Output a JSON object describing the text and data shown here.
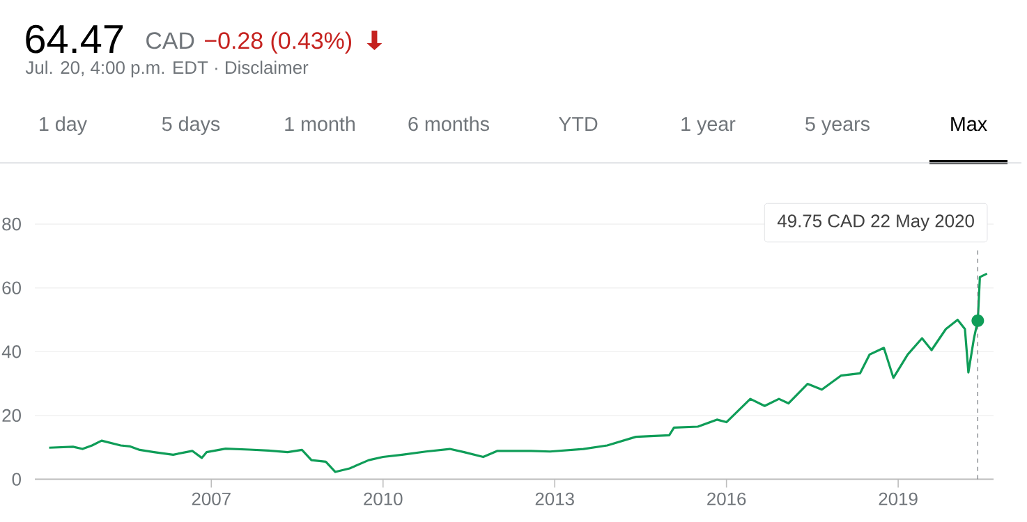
{
  "chart_data": {
    "type": "line",
    "title": "64.47",
    "subtitle": "Jul. 20, 4:00 p.m. EDT · Disclaimer",
    "annotations": [
      "CAD",
      "−0.28 (0.43%)",
      "1 day",
      "5 days",
      "1 month",
      "6 months",
      "YTD",
      "1 year",
      "5 years",
      "Max"
    ],
    "ref_lines": [
      {
        "axis": "x",
        "value": "2020-05-22",
        "label": "49.75 CAD  22 May 2020",
        "color": "#70757a",
        "line_style": "dashed"
      }
    ],
    "x": [
      "2004-03",
      "2004-08",
      "2004-10",
      "2004-12",
      "2005-02",
      "2005-06",
      "2005-08",
      "2005-10",
      "2006-01",
      "2006-05",
      "2006-09",
      "2006-11",
      "2006-12",
      "2007-04",
      "2007-09",
      "2008-01",
      "2008-05",
      "2008-08",
      "2008-10",
      "2009-01",
      "2009-03",
      "2009-06",
      "2009-10",
      "2010-01",
      "2010-05",
      "2010-10",
      "2011-03",
      "2011-06",
      "2011-10",
      "2012-01",
      "2012-08",
      "2012-12",
      "2013-07",
      "2013-12",
      "2014-06",
      "2015-01",
      "2015-02",
      "2015-07",
      "2015-11",
      "2016-01",
      "2016-06",
      "2016-09",
      "2016-12",
      "2017-02",
      "2017-06",
      "2017-09",
      "2018-01",
      "2018-05",
      "2018-07",
      "2018-10",
      "2018-12",
      "2019-03",
      "2019-06",
      "2019-08",
      "2019-11",
      "2020-01-15",
      "2020-03-01",
      "2020-03-23",
      "2020-04-28",
      "2020-05-22",
      "2020-06-05",
      "2020-07-20"
    ],
    "series": [
      {
        "color": "#0f9d58",
        "values": [
          9.9,
          10.2,
          9.5,
          10.6,
          12.1,
          10.6,
          10.3,
          9.2,
          8.5,
          7.7,
          8.9,
          6.7,
          8.5,
          9.6,
          9.3,
          9.0,
          8.5,
          9.2,
          6.0,
          5.5,
          2.3,
          3.4,
          6.0,
          7.0,
          7.7,
          8.7,
          9.5,
          8.5,
          7.0,
          8.9,
          8.9,
          8.7,
          9.5,
          10.6,
          13.3,
          13.8,
          16.2,
          16.5,
          18.7,
          17.9,
          25.2,
          23.0,
          25.2,
          23.8,
          29.9,
          28.1,
          32.5,
          33.2,
          39.1,
          41.2,
          31.8,
          39.1,
          44.2,
          40.5,
          47.1,
          50.0,
          47.1,
          33.5,
          44.2,
          49.75,
          63.4,
          64.47
        ]
      }
    ],
    "xlim": [
      "2003-12",
      "2020-09"
    ],
    "xticks": [
      {
        "value": "2007",
        "label": "2007"
      },
      {
        "value": "2010",
        "label": "2010"
      },
      {
        "value": "2013",
        "label": "2013"
      },
      {
        "value": "2016",
        "label": "2016"
      },
      {
        "value": "2019",
        "label": "2019"
      }
    ],
    "ylim": [
      0,
      80
    ],
    "yticks": [
      0,
      20,
      40,
      60,
      80
    ],
    "grid": "y",
    "marker": "none",
    "line_style": "solid"
  }
}
